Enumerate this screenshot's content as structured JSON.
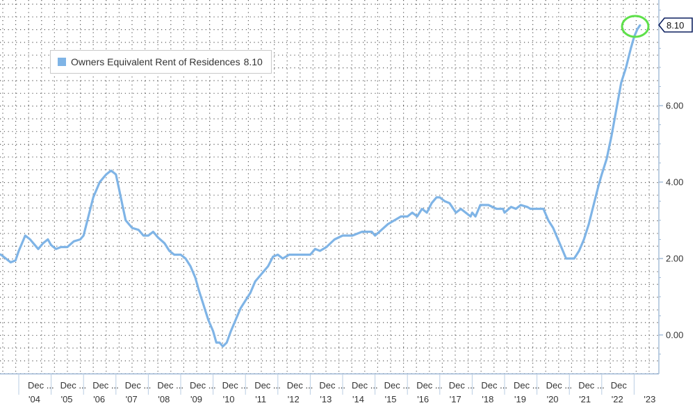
{
  "chart_data": {
    "type": "line",
    "title": "",
    "xlabel": "",
    "ylabel": "",
    "ylim": [
      -1.0,
      8.6
    ],
    "y_ticks": [
      "0.00",
      "2.00",
      "4.00",
      "6.00"
    ],
    "y_tick_values": [
      0,
      2,
      4,
      6
    ],
    "x_tick_top": "Dec ...",
    "x_tick_top_last": "Dec",
    "x_tick_years": [
      "'04",
      "'05",
      "'06",
      "'07",
      "'08",
      "'09",
      "'10",
      "'11",
      "'12",
      "'13",
      "'14",
      "'15",
      "'16",
      "'17",
      "'18",
      "'19",
      "'20",
      "'21",
      "'22",
      "'23"
    ],
    "legend": {
      "label": "Owners Equivalent Rent of Residences",
      "value": "8.10",
      "position": "top-left",
      "color": "#7fb4e6"
    },
    "last_value_label": "8.10",
    "grid": true,
    "series": [
      {
        "name": "Owners Equivalent Rent of Residences",
        "color": "#7fb4e6",
        "points": [
          [
            2003.0,
            2.3
          ],
          [
            2003.2,
            2.15
          ],
          [
            2003.45,
            2.1
          ],
          [
            2003.6,
            2.0
          ],
          [
            2003.75,
            1.9
          ],
          [
            2003.9,
            1.95
          ],
          [
            2004.0,
            2.2
          ],
          [
            2004.1,
            2.4
          ],
          [
            2004.2,
            2.6
          ],
          [
            2004.35,
            2.5
          ],
          [
            2004.5,
            2.35
          ],
          [
            2004.6,
            2.25
          ],
          [
            2004.75,
            2.4
          ],
          [
            2004.9,
            2.5
          ],
          [
            2005.0,
            2.35
          ],
          [
            2005.15,
            2.25
          ],
          [
            2005.3,
            2.3
          ],
          [
            2005.5,
            2.3
          ],
          [
            2005.7,
            2.45
          ],
          [
            2005.9,
            2.5
          ],
          [
            2006.0,
            2.6
          ],
          [
            2006.15,
            3.1
          ],
          [
            2006.3,
            3.6
          ],
          [
            2006.5,
            4.0
          ],
          [
            2006.7,
            4.2
          ],
          [
            2006.85,
            4.3
          ],
          [
            2007.0,
            4.2
          ],
          [
            2007.1,
            3.8
          ],
          [
            2007.2,
            3.4
          ],
          [
            2007.3,
            3.0
          ],
          [
            2007.5,
            2.8
          ],
          [
            2007.7,
            2.75
          ],
          [
            2007.85,
            2.6
          ],
          [
            2008.0,
            2.6
          ],
          [
            2008.15,
            2.7
          ],
          [
            2008.3,
            2.55
          ],
          [
            2008.5,
            2.4
          ],
          [
            2008.65,
            2.2
          ],
          [
            2008.8,
            2.1
          ],
          [
            2009.0,
            2.1
          ],
          [
            2009.15,
            2.0
          ],
          [
            2009.3,
            1.8
          ],
          [
            2009.45,
            1.5
          ],
          [
            2009.55,
            1.2
          ],
          [
            2009.7,
            0.8
          ],
          [
            2009.85,
            0.4
          ],
          [
            2010.0,
            0.1
          ],
          [
            2010.1,
            -0.2
          ],
          [
            2010.2,
            -0.2
          ],
          [
            2010.3,
            -0.3
          ],
          [
            2010.42,
            -0.2
          ],
          [
            2010.55,
            0.1
          ],
          [
            2010.7,
            0.4
          ],
          [
            2010.85,
            0.7
          ],
          [
            2011.0,
            0.9
          ],
          [
            2011.15,
            1.1
          ],
          [
            2011.3,
            1.4
          ],
          [
            2011.5,
            1.6
          ],
          [
            2011.7,
            1.8
          ],
          [
            2011.85,
            2.05
          ],
          [
            2012.0,
            2.1
          ],
          [
            2012.15,
            2.0
          ],
          [
            2012.35,
            2.1
          ],
          [
            2012.6,
            2.1
          ],
          [
            2012.85,
            2.1
          ],
          [
            2013.0,
            2.1
          ],
          [
            2013.15,
            2.25
          ],
          [
            2013.3,
            2.2
          ],
          [
            2013.5,
            2.3
          ],
          [
            2013.75,
            2.5
          ],
          [
            2014.0,
            2.6
          ],
          [
            2014.3,
            2.6
          ],
          [
            2014.6,
            2.7
          ],
          [
            2014.9,
            2.7
          ],
          [
            2015.0,
            2.6
          ],
          [
            2015.2,
            2.75
          ],
          [
            2015.4,
            2.9
          ],
          [
            2015.6,
            3.0
          ],
          [
            2015.8,
            3.1
          ],
          [
            2016.0,
            3.1
          ],
          [
            2016.15,
            3.2
          ],
          [
            2016.3,
            3.1
          ],
          [
            2016.45,
            3.3
          ],
          [
            2016.6,
            3.2
          ],
          [
            2016.75,
            3.45
          ],
          [
            2016.9,
            3.6
          ],
          [
            2017.0,
            3.6
          ],
          [
            2017.15,
            3.5
          ],
          [
            2017.3,
            3.45
          ],
          [
            2017.5,
            3.2
          ],
          [
            2017.65,
            3.3
          ],
          [
            2017.8,
            3.2
          ],
          [
            2017.95,
            3.1
          ],
          [
            2018.0,
            3.2
          ],
          [
            2018.1,
            3.1
          ],
          [
            2018.25,
            3.4
          ],
          [
            2018.5,
            3.4
          ],
          [
            2018.75,
            3.3
          ],
          [
            2018.95,
            3.3
          ],
          [
            2019.0,
            3.2
          ],
          [
            2019.2,
            3.35
          ],
          [
            2019.35,
            3.3
          ],
          [
            2019.5,
            3.4
          ],
          [
            2019.7,
            3.35
          ],
          [
            2019.8,
            3.3
          ],
          [
            2020.0,
            3.3
          ],
          [
            2020.2,
            3.3
          ],
          [
            2020.35,
            3.0
          ],
          [
            2020.5,
            2.8
          ],
          [
            2020.65,
            2.5
          ],
          [
            2020.8,
            2.2
          ],
          [
            2020.9,
            2.0
          ],
          [
            2021.0,
            2.0
          ],
          [
            2021.15,
            2.0
          ],
          [
            2021.3,
            2.2
          ],
          [
            2021.45,
            2.5
          ],
          [
            2021.6,
            2.9
          ],
          [
            2021.75,
            3.4
          ],
          [
            2021.9,
            3.9
          ],
          [
            2022.0,
            4.2
          ],
          [
            2022.15,
            4.6
          ],
          [
            2022.3,
            5.2
          ],
          [
            2022.45,
            5.9
          ],
          [
            2022.6,
            6.6
          ],
          [
            2022.75,
            7.0
          ],
          [
            2022.9,
            7.5
          ],
          [
            2023.0,
            7.8
          ],
          [
            2023.1,
            8.0
          ],
          [
            2023.18,
            8.1
          ]
        ]
      }
    ]
  }
}
